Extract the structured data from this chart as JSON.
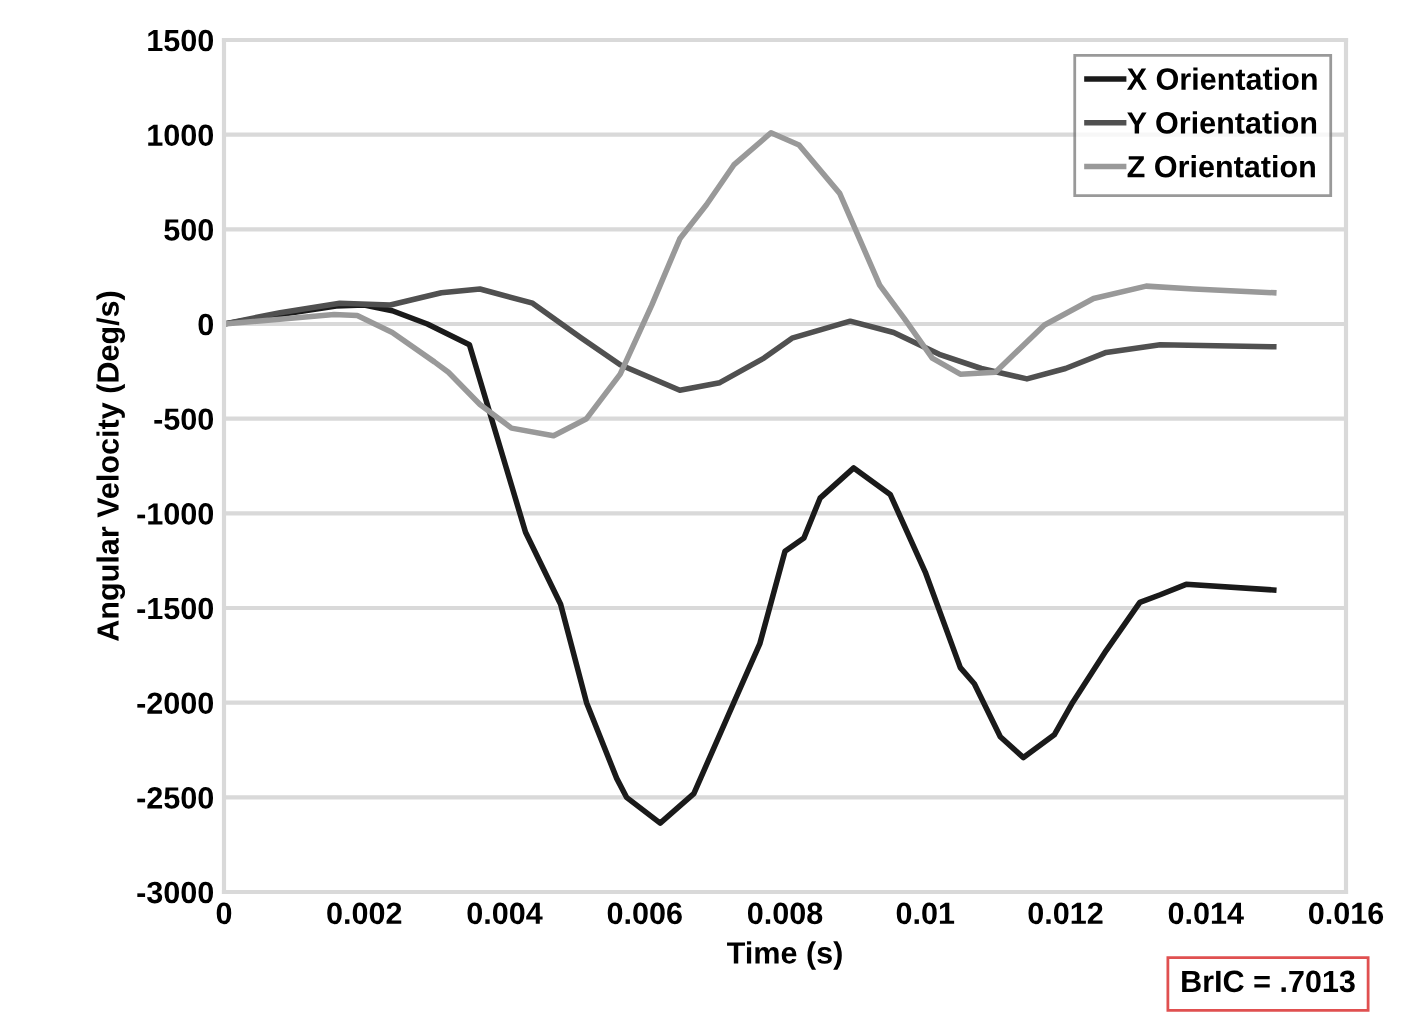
{
  "chart_data": {
    "type": "line",
    "xlabel": "Time (s)",
    "ylabel": "Angular Velocity (Deg/s)",
    "xlim": [
      0,
      0.016
    ],
    "xticks": [
      0,
      0.002,
      0.004,
      0.006,
      0.008,
      0.01,
      0.012,
      0.014,
      0.016
    ],
    "ylim": [
      -3000,
      1500
    ],
    "yticks": [
      -3000,
      -2500,
      -2000,
      -1500,
      -1000,
      -500,
      0,
      500,
      1000,
      1500
    ],
    "grid": "y",
    "legend": "top right",
    "marker": "none",
    "line_style": "solid",
    "annotations": [
      "BrIC = .7013"
    ],
    "series": [
      {
        "name": "X Orientation",
        "color": "#1a1a1a",
        "x": [
          0,
          0.0008,
          0.0016,
          0.002,
          0.0024,
          0.0029,
          0.0035,
          0.0043,
          0.0048,
          0.00517,
          0.0056,
          0.00574,
          0.00622,
          0.0067,
          0.00727,
          0.00764,
          0.008,
          0.00827,
          0.0085,
          0.00898,
          0.0095,
          0.01,
          0.0105,
          0.0107,
          0.01107,
          0.0114,
          0.01184,
          0.0121,
          0.01258,
          0.01306,
          0.01335,
          0.01372,
          0.01497
        ],
        "values": [
          0,
          50,
          95,
          100,
          70,
          0,
          -110,
          -1100,
          -1480,
          -2000,
          -2400,
          -2500,
          -2636,
          -2480,
          -2000,
          -1690,
          -1200,
          -1130,
          -920,
          -760,
          -900,
          -1310,
          -1815,
          -1900,
          -2180,
          -2290,
          -2170,
          -2000,
          -1725,
          -1470,
          -1430,
          -1375,
          -1405
        ]
      },
      {
        "name": "Y Orientation",
        "color": "#505050",
        "x": [
          0,
          0.0008,
          0.00165,
          0.00237,
          0.0031,
          0.00365,
          0.0044,
          0.0051,
          0.00565,
          0.0065,
          0.00707,
          0.0077,
          0.0081,
          0.00893,
          0.00955,
          0.0102,
          0.0108,
          0.01145,
          0.012,
          0.01258,
          0.01335,
          0.01497
        ],
        "values": [
          0,
          60,
          110,
          100,
          165,
          185,
          110,
          -75,
          -215,
          -350,
          -310,
          -180,
          -75,
          15,
          -45,
          -160,
          -235,
          -290,
          -235,
          -150,
          -110,
          -120
        ]
      },
      {
        "name": "Z Orientation",
        "color": "#999999",
        "x": [
          0,
          0.00157,
          0.0019,
          0.0024,
          0.003,
          0.0032,
          0.00365,
          0.0041,
          0.0047,
          0.00517,
          0.00565,
          0.0061,
          0.0065,
          0.00688,
          0.00727,
          0.0078,
          0.0082,
          0.00878,
          0.00935,
          0.0097,
          0.0101,
          0.0105,
          0.011,
          0.0117,
          0.0124,
          0.01315,
          0.01383,
          0.01497
        ],
        "values": [
          0,
          50,
          45,
          -45,
          -200,
          -255,
          -425,
          -550,
          -590,
          -500,
          -265,
          100,
          450,
          630,
          840,
          1010,
          945,
          690,
          205,
          30,
          -180,
          -265,
          -255,
          -5,
          135,
          200,
          185,
          165
        ]
      }
    ]
  }
}
